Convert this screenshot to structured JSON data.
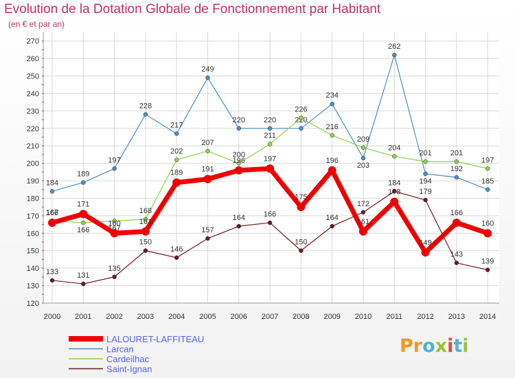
{
  "chart_data": {
    "type": "line",
    "title": "Evolution de la Dotation Globale de Fonctionnement par Habitant",
    "subtitle": "(en € et par an)",
    "xlabel": "",
    "ylabel": "",
    "ylim": [
      120,
      270
    ],
    "yticks": [
      120,
      130,
      140,
      150,
      160,
      170,
      180,
      190,
      200,
      210,
      220,
      230,
      240,
      250,
      260,
      270
    ],
    "categories": [
      "2000",
      "2001",
      "2002",
      "2003",
      "2004",
      "2005",
      "2006",
      "2007",
      "2008",
      "2009",
      "2010",
      "2011",
      "2012",
      "2013",
      "2014"
    ],
    "grid": true,
    "legend_position": "bottom-left",
    "series": [
      {
        "name": "Larcan",
        "color": "#4a8fc4",
        "values": [
          184,
          189,
          197,
          228,
          217,
          249,
          220,
          220,
          220,
          234,
          203,
          262,
          194,
          192,
          185
        ]
      },
      {
        "name": "Cardeilhac",
        "color": "#8ed04a",
        "values": [
          167,
          166,
          167,
          168,
          202,
          207,
          200,
          211,
          226,
          216,
          209,
          204,
          201,
          201,
          197
        ]
      },
      {
        "name": "Saint-Ignan",
        "color": "#6b1a22",
        "values": [
          133,
          131,
          135,
          150,
          146,
          157,
          164,
          166,
          150,
          164,
          172,
          184,
          179,
          143,
          139
        ]
      },
      {
        "name": "LALOURET-LAFFITEAU",
        "color": "#ee0000",
        "values": [
          166,
          171,
          160,
          161,
          189,
          191,
          196,
          197,
          175,
          196,
          161,
          178,
          149,
          166,
          160
        ]
      }
    ],
    "legend_order": [
      "LALOURET-LAFFITEAU",
      "Larcan",
      "Cardeilhac",
      "Saint-Ignan"
    ]
  },
  "branding": {
    "logo_text": "Proxiti",
    "logo_letters": [
      "P",
      "r",
      "o",
      "x",
      "i",
      "t",
      "i"
    ],
    "logo_colors": [
      "#f29a1f",
      "#f29a1f",
      "#4db3e0",
      "#9bc43a",
      "#e8463b",
      "#4db3e0",
      "#9bc43a"
    ]
  },
  "colors": {
    "title": "#c0306a",
    "axis_text": "#333333",
    "grid": "#d9d9d9",
    "legend_text": "#5566dd"
  }
}
